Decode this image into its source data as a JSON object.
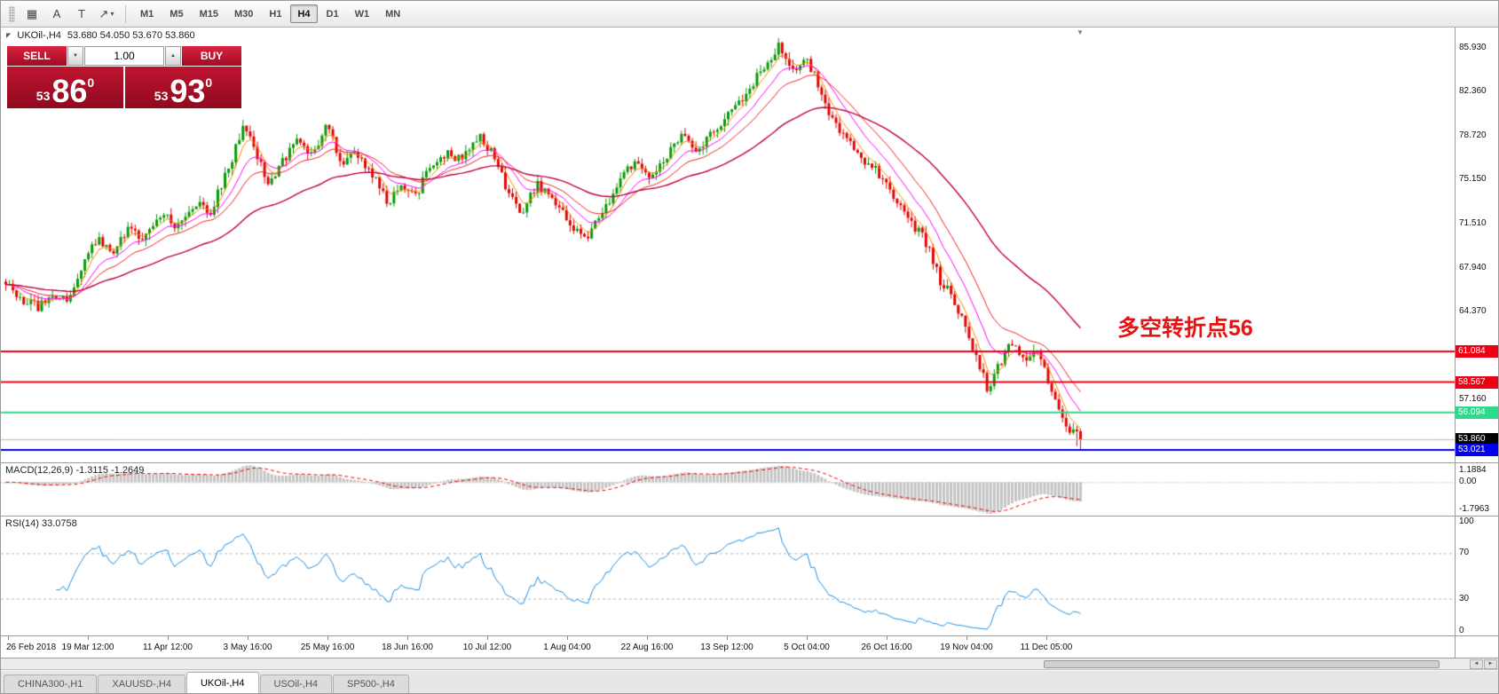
{
  "toolbar": {
    "tools": [
      {
        "name": "pattern-icon",
        "glyph": "▦"
      },
      {
        "name": "text-label-icon",
        "glyph": "A"
      },
      {
        "name": "text-box-icon",
        "glyph": "T"
      },
      {
        "name": "shapes-icon",
        "glyph": "↗",
        "caret": true
      }
    ],
    "timeframes": [
      "M1",
      "M5",
      "M15",
      "M30",
      "H1",
      "H4",
      "D1",
      "W1",
      "MN"
    ],
    "active_timeframe": "H4"
  },
  "icons": {
    "caret_down": "▼",
    "caret_up": "▲",
    "dropdown_caret": "▾",
    "scroll_left": "◄",
    "scroll_right": "►",
    "shift_marker": "▼"
  },
  "chart_header": {
    "marker": "◤",
    "symbol_title": "UKOil-,H4",
    "ohlc": "53.680 54.050 53.670 53.860"
  },
  "trade_panel": {
    "sell_label": "SELL",
    "buy_label": "BUY",
    "volume": "1.00",
    "bid": {
      "prefix": "53",
      "big": "86",
      "sup": "0"
    },
    "ask": {
      "prefix": "53",
      "big": "93",
      "sup": "0"
    }
  },
  "annotation": {
    "text": "多空转折点56",
    "color": "#e81212"
  },
  "indicators": {
    "macd": {
      "label": "MACD(12,26,9) -1.3115 -1.2649",
      "scale_top": "1.1884",
      "scale_zero": "0.00",
      "scale_bottom": "-1.7963"
    },
    "rsi": {
      "label": "RSI(14) 33.0758",
      "scale": [
        {
          "text": "100",
          "value": 100
        },
        {
          "text": "70",
          "value": 70
        },
        {
          "text": "30",
          "value": 30
        },
        {
          "text": "0",
          "value": 0
        }
      ]
    }
  },
  "time_axis": {
    "labels": [
      "26 Feb 2018",
      "19 Mar 12:00",
      "11 Apr 12:00",
      "3 May 16:00",
      "25 May 16:00",
      "18 Jun 16:00",
      "10 Jul 12:00",
      "1 Aug 04:00",
      "22 Aug 16:00",
      "13 Sep 12:00",
      "5 Oct 04:00",
      "26 Oct 16:00",
      "19 Nov 04:00",
      "11 Dec 05:00"
    ],
    "px_spacing": 90
  },
  "tabs": [
    {
      "label": "CHINA300-,H1",
      "active": false
    },
    {
      "label": "XAUUSD-,H4",
      "active": false
    },
    {
      "label": "UKOil-,H4",
      "active": true
    },
    {
      "label": "USOil-,H4",
      "active": false
    },
    {
      "label": "SP500-,H4",
      "active": false
    }
  ],
  "chart_data": {
    "type": "candlestick",
    "symbol": "UKOil-,H4",
    "timeframe": "H4",
    "current_ohlc": {
      "open": 53.68,
      "high": 54.05,
      "low": 53.67,
      "close": 53.86
    },
    "ylim": [
      52.0,
      87.6
    ],
    "y_ticks": [
      {
        "text": "85.930",
        "value": 85.93
      },
      {
        "text": "82.360",
        "value": 82.36
      },
      {
        "text": "78.720",
        "value": 78.72
      },
      {
        "text": "75.150",
        "value": 75.15
      },
      {
        "text": "71.510",
        "value": 71.51
      },
      {
        "text": "67.940",
        "value": 67.94
      },
      {
        "text": "64.370",
        "value": 64.37
      },
      {
        "text": "57.160",
        "value": 57.16
      }
    ],
    "price_levels": [
      {
        "text": "61.084",
        "value": 61.084,
        "bg": "#ee0014",
        "fg": "#ffffff",
        "line": "#ee0014",
        "width": 2
      },
      {
        "text": "58.567",
        "value": 58.567,
        "bg": "#ee0014",
        "fg": "#ffffff",
        "line": "#ee0014",
        "width": 2
      },
      {
        "text": "56.094",
        "value": 56.094,
        "bg": "#2fd98c",
        "fg": "#ffffff",
        "line": "#2fd98c",
        "width": 2
      },
      {
        "text": "53.860",
        "value": 53.86,
        "bg": "#000000",
        "fg": "#ffffff",
        "line": "#b8b8b8",
        "width": 1
      },
      {
        "text": "53.021",
        "value": 53.021,
        "bg": "#0000ee",
        "fg": "#ffffff",
        "line": "#0000dd",
        "width": 2
      }
    ],
    "n_candles": 300,
    "x_start": 4,
    "x_step": 4.05,
    "candle_width": 3,
    "colors": {
      "up": "#0b9a0b",
      "down": "#e00707",
      "background": "#ffffff"
    },
    "mas": [
      {
        "period": 5,
        "color": "#ff8800",
        "width": 1
      },
      {
        "period": 12,
        "color": "#ff00ff",
        "width": 1
      },
      {
        "period": 21,
        "color": "#ee2222",
        "width": 1
      },
      {
        "period": 55,
        "color": "#c00040",
        "width": 1.4
      }
    ],
    "macd_params": {
      "fast": 12,
      "slow": 26,
      "signal": 9,
      "hist_color": "#c4c4c4",
      "signal_color": "#ee0000"
    },
    "rsi_params": {
      "period": 14,
      "color": "#2090e0",
      "levels": [
        70,
        30
      ]
    },
    "price_path": [
      [
        0,
        66.8
      ],
      [
        0.01,
        65.6
      ],
      [
        0.03,
        64.6
      ],
      [
        0.045,
        65.8
      ],
      [
        0.055,
        65.1
      ],
      [
        0.07,
        67.8
      ],
      [
        0.085,
        70.3
      ],
      [
        0.1,
        69.2
      ],
      [
        0.115,
        71.2
      ],
      [
        0.13,
        70.4
      ],
      [
        0.145,
        72.3
      ],
      [
        0.16,
        71.4
      ],
      [
        0.175,
        73.3
      ],
      [
        0.19,
        72.5
      ],
      [
        0.205,
        75.5
      ],
      [
        0.22,
        79.3
      ],
      [
        0.232,
        77.6
      ],
      [
        0.245,
        74.8
      ],
      [
        0.258,
        76.8
      ],
      [
        0.272,
        78.6
      ],
      [
        0.285,
        77.2
      ],
      [
        0.3,
        79.8
      ],
      [
        0.312,
        76.2
      ],
      [
        0.325,
        77.6
      ],
      [
        0.34,
        75.8
      ],
      [
        0.355,
        73.2
      ],
      [
        0.368,
        75.0
      ],
      [
        0.382,
        73.8
      ],
      [
        0.395,
        76.2
      ],
      [
        0.41,
        77.4
      ],
      [
        0.425,
        76.6
      ],
      [
        0.44,
        78.9
      ],
      [
        0.455,
        77.2
      ],
      [
        0.468,
        73.9
      ],
      [
        0.48,
        72.6
      ],
      [
        0.495,
        74.6
      ],
      [
        0.508,
        73.6
      ],
      [
        0.522,
        71.8
      ],
      [
        0.54,
        70.3
      ],
      [
        0.555,
        72.8
      ],
      [
        0.57,
        74.6
      ],
      [
        0.585,
        76.8
      ],
      [
        0.6,
        75.6
      ],
      [
        0.615,
        77.2
      ],
      [
        0.63,
        78.6
      ],
      [
        0.645,
        77.4
      ],
      [
        0.66,
        79.2
      ],
      [
        0.68,
        81.2
      ],
      [
        0.7,
        83.6
      ],
      [
        0.72,
        86.2
      ],
      [
        0.733,
        84.2
      ],
      [
        0.744,
        85.4
      ],
      [
        0.755,
        83.2
      ],
      [
        0.768,
        80.2
      ],
      [
        0.78,
        79.0
      ],
      [
        0.793,
        77.2
      ],
      [
        0.806,
        76.2
      ],
      [
        0.82,
        75.0
      ],
      [
        0.833,
        72.6
      ],
      [
        0.846,
        71.2
      ],
      [
        0.858,
        69.8
      ],
      [
        0.87,
        66.8
      ],
      [
        0.882,
        65.4
      ],
      [
        0.893,
        63.2
      ],
      [
        0.905,
        59.8
      ],
      [
        0.915,
        57.9
      ],
      [
        0.925,
        60.2
      ],
      [
        0.935,
        61.6
      ],
      [
        0.948,
        60.4
      ],
      [
        0.958,
        61.2
      ],
      [
        0.968,
        59.2
      ],
      [
        0.978,
        56.6
      ],
      [
        0.988,
        54.6
      ],
      [
        1,
        53.86
      ]
    ]
  }
}
